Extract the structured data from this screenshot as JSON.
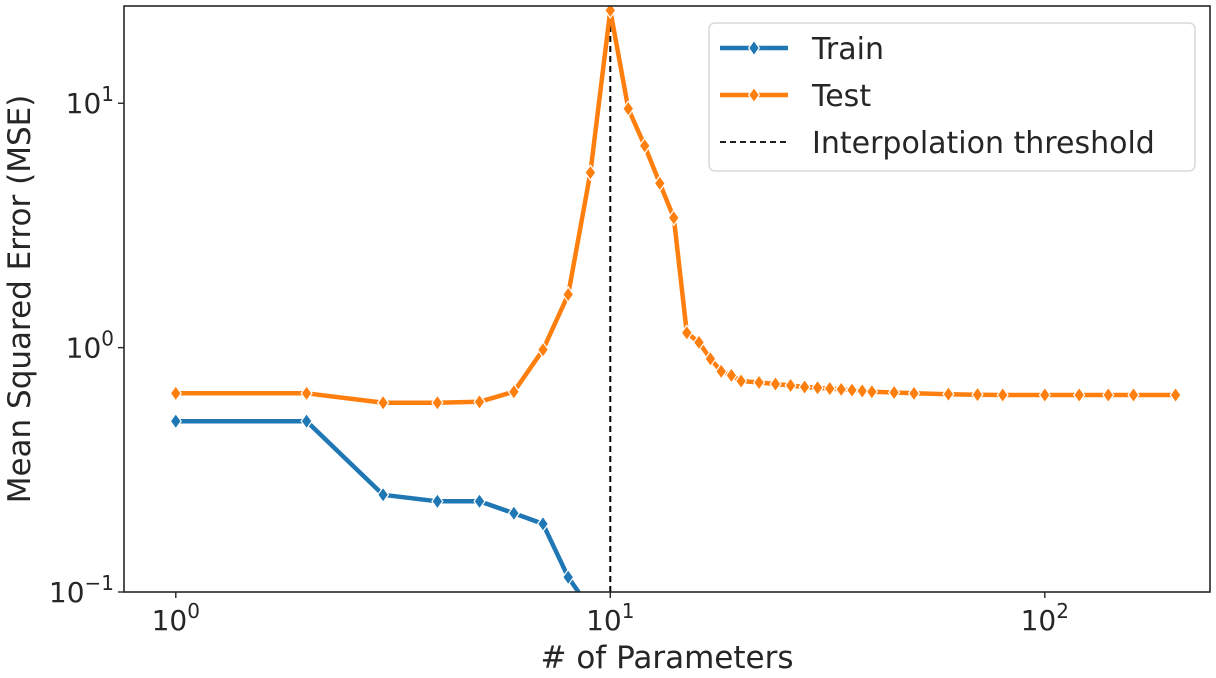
{
  "chart_data": {
    "type": "line",
    "title": "",
    "xlabel": "# of Parameters",
    "ylabel": "Mean Squared Error (MSE)",
    "xscale": "log",
    "yscale": "log",
    "xlim": [
      0.76,
      240
    ],
    "ylim": [
      0.1,
      25
    ],
    "grid": false,
    "legend_position": "top-right",
    "x_ticks": [
      {
        "value": 1,
        "base": "10",
        "exp": "0"
      },
      {
        "value": 10,
        "base": "10",
        "exp": "1"
      },
      {
        "value": 100,
        "base": "10",
        "exp": "2"
      }
    ],
    "y_ticks": [
      {
        "value": 0.1,
        "base": "10",
        "exp": "−1"
      },
      {
        "value": 1,
        "base": "10",
        "exp": "0"
      },
      {
        "value": 10,
        "base": "10",
        "exp": "1"
      }
    ],
    "series": [
      {
        "name": "Train",
        "color": "#1f77b4",
        "marker": "diamond",
        "x": [
          1,
          2,
          3,
          4,
          5,
          6,
          7,
          8,
          9
        ],
        "y": [
          0.5,
          0.5,
          0.25,
          0.235,
          0.235,
          0.21,
          0.19,
          0.115,
          0.085
        ]
      },
      {
        "name": "Test",
        "color": "#ff7f0e",
        "marker": "diamond",
        "x": [
          1,
          2,
          3,
          4,
          5,
          6,
          7,
          8,
          9,
          10,
          11,
          12,
          13,
          14,
          15,
          16,
          17,
          18,
          19,
          20,
          22,
          24,
          26,
          28,
          30,
          32,
          34,
          36,
          38,
          40,
          45,
          50,
          60,
          70,
          80,
          100,
          120,
          140,
          160,
          200
        ],
        "y": [
          0.65,
          0.65,
          0.595,
          0.595,
          0.6,
          0.66,
          0.98,
          1.65,
          5.2,
          24.0,
          9.5,
          6.7,
          4.7,
          3.4,
          1.15,
          1.05,
          0.9,
          0.8,
          0.77,
          0.73,
          0.72,
          0.71,
          0.7,
          0.69,
          0.685,
          0.68,
          0.675,
          0.67,
          0.665,
          0.66,
          0.655,
          0.65,
          0.645,
          0.642,
          0.64,
          0.64,
          0.64,
          0.64,
          0.64,
          0.64
        ]
      }
    ],
    "reference_lines": [
      {
        "name": "Interpolation threshold",
        "orientation": "vertical",
        "x": 10,
        "color": "#000000",
        "style": "dashed"
      }
    ]
  }
}
